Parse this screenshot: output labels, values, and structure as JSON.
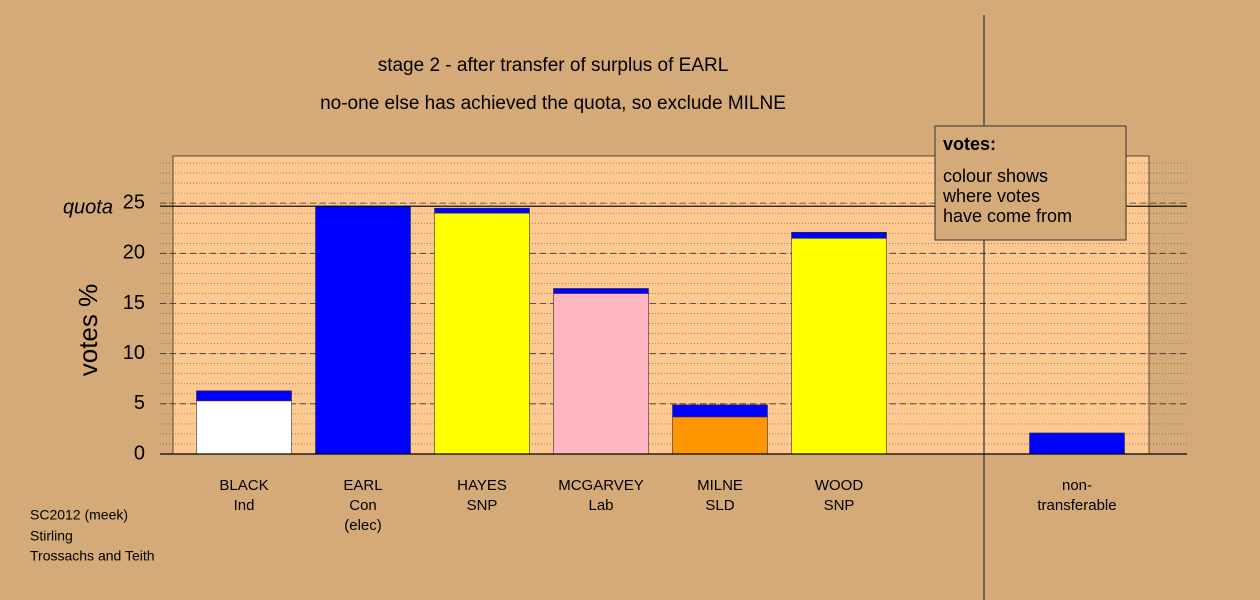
{
  "chart_data": {
    "type": "stacked-bar",
    "title": "stage 2 - after transfer of surplus of EARL",
    "subtitle": "no-one else has achieved the quota, so exclude MILNE",
    "y_label": "votes %",
    "categories": [
      [
        "BLACK",
        "Ind"
      ],
      [
        "EARL",
        "Con",
        "(elec)"
      ],
      [
        "HAYES",
        "SNP"
      ],
      [
        "MCGARVEY",
        "Lab"
      ],
      [
        "MILNE",
        "SLD"
      ],
      [
        "WOOD",
        "SNP"
      ],
      [
        "non-",
        "transferable"
      ]
    ],
    "series": [
      {
        "colors": [
          "#ffffff",
          "#0000ff",
          "#ffff00",
          "#ffb6c1",
          "#ff9500",
          "#ffff00",
          "#0000ff"
        ],
        "values": [
          5.3,
          24.7,
          24.0,
          16.0,
          3.7,
          21.5,
          0
        ]
      },
      {
        "color": "#0000ff",
        "values": [
          1.0,
          0,
          0.5,
          0.5,
          1.2,
          0.6,
          2.1
        ]
      }
    ],
    "ylim": [
      0,
      29.7
    ],
    "yticks": [
      0,
      5,
      10,
      15,
      20,
      25
    ],
    "grid": true,
    "minor_grid": true,
    "quota": 24.7,
    "quota_label": "quota",
    "note": {
      "heading": "votes:",
      "lines": [
        "colour shows",
        "where votes",
        "have come from"
      ]
    },
    "footer": [
      "SC2012 (meek)",
      "Stirling",
      "Trossachs and Teith"
    ]
  }
}
